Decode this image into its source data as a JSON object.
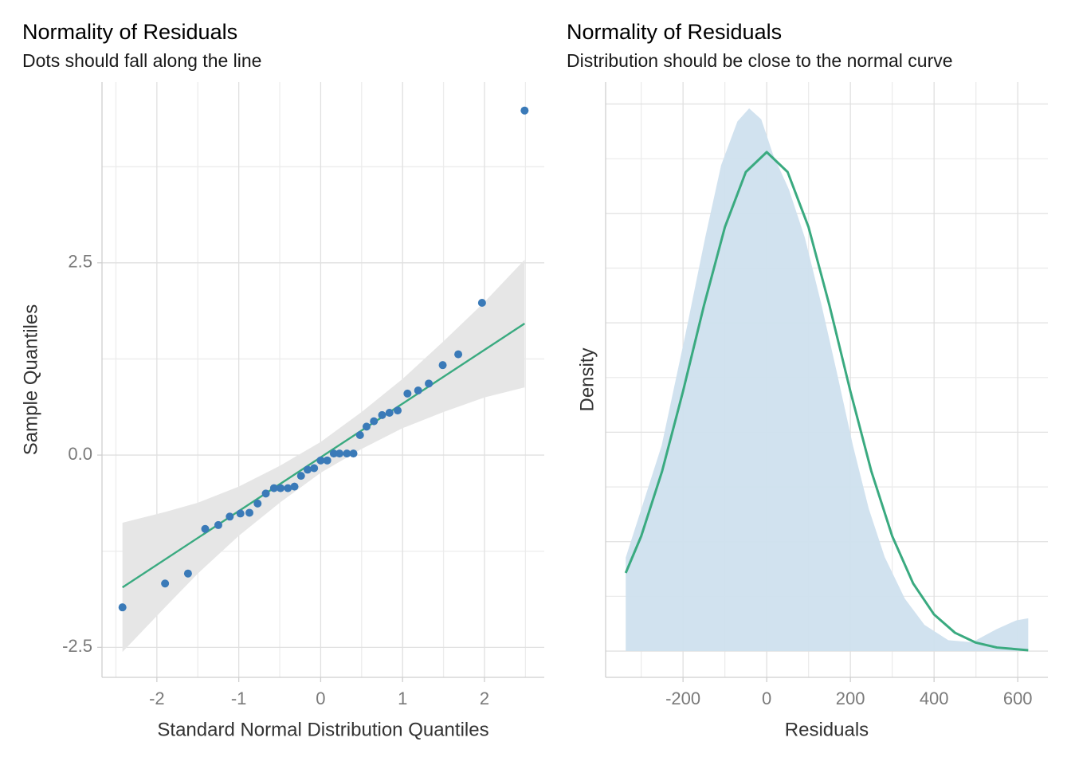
{
  "chart_data": [
    {
      "type": "qq",
      "title": "Normality of Residuals",
      "subtitle": "Dots should fall along the line",
      "x_label": "Standard Normal Distribution Quantiles",
      "y_label": "Sample Quantiles",
      "xlim": [
        -2.67,
        2.73
      ],
      "ylim": [
        -2.89,
        4.85
      ],
      "xticks": [
        -2,
        -1,
        0,
        1,
        2
      ],
      "yticks": [
        -2.5,
        {
          "value": 0,
          "label": "0.0"
        },
        2.5
      ],
      "minor_xticks": [
        -2.5,
        -1.5,
        -0.5,
        0.5,
        1.5,
        2.5
      ],
      "minor_yticks": [
        -1.25,
        1.25,
        3.75
      ],
      "grid": true,
      "band": {
        "color": "#e6e6e6",
        "x": [
          -2.42,
          -1.9,
          -1.5,
          -1,
          -0.5,
          0,
          0.5,
          1,
          1.5,
          2,
          2.49
        ],
        "upper": [
          -0.88,
          -0.74,
          -0.62,
          -0.41,
          -0.14,
          0.17,
          0.56,
          0.99,
          1.48,
          1.99,
          2.54
        ],
        "lower": [
          -2.56,
          -1.98,
          -1.54,
          -1.05,
          -0.62,
          -0.23,
          0.08,
          0.35,
          0.56,
          0.75,
          0.88
        ]
      },
      "reference_line": {
        "color": "#3aaa80",
        "x": [
          -2.42,
          2.49
        ],
        "y": [
          -1.72,
          1.71
        ]
      },
      "points": {
        "color": "#3a7ab8",
        "x": [
          -2.42,
          -1.9,
          -1.62,
          -1.41,
          -1.25,
          -1.11,
          -0.98,
          -0.87,
          -0.77,
          -0.67,
          -0.57,
          -0.49,
          -0.4,
          -0.32,
          -0.24,
          -0.16,
          -0.08,
          0,
          0.08,
          0.16,
          0.23,
          0.32,
          0.4,
          0.48,
          0.56,
          0.65,
          0.75,
          0.84,
          0.94,
          1.06,
          1.19,
          1.32,
          1.49,
          1.68,
          1.97,
          2.49
        ],
        "y": [
          -1.98,
          -1.67,
          -1.54,
          -0.96,
          -0.91,
          -0.8,
          -0.76,
          -0.75,
          -0.63,
          -0.5,
          -0.43,
          -0.43,
          -0.43,
          -0.41,
          -0.27,
          -0.19,
          -0.17,
          -0.07,
          -0.07,
          0.02,
          0.02,
          0.02,
          0.02,
          0.26,
          0.37,
          0.44,
          0.52,
          0.55,
          0.58,
          0.8,
          0.84,
          0.93,
          1.17,
          1.31,
          1.98,
          4.48
        ]
      }
    },
    {
      "type": "density",
      "title": "Normality of Residuals",
      "subtitle": "Distribution should be close to the normal curve",
      "x_label": "Residuals",
      "y_label": "Density",
      "xlim": [
        -385,
        672
      ],
      "ylim": [
        -0.00012,
        0.0026
      ],
      "xticks": [
        -200,
        0,
        200,
        400,
        600
      ],
      "minor_xticks": [
        -300,
        -100,
        100,
        300,
        500
      ],
      "ygrid": [
        0,
        0.0005,
        0.001,
        0.0015,
        0.002,
        0.0025
      ],
      "minor_ygrid": [
        0.00025,
        0.00075,
        0.00125,
        0.00175,
        0.00225
      ],
      "grid": true,
      "density": {
        "color": "#cfe0ee",
        "x": [
          -337,
          -251,
          -194,
          -147,
          -109,
          -70,
          -42,
          -13,
          15,
          53,
          91,
          130,
          168,
          206,
          244,
          282,
          330,
          377,
          434,
          491,
          549,
          596,
          625
        ],
        "y": [
          0.000427,
          0.00094,
          0.00145,
          0.00189,
          0.00222,
          0.00242,
          0.00248,
          0.00243,
          0.00227,
          0.00211,
          0.00189,
          0.00159,
          0.00127,
          0.00094,
          0.00065,
          0.00043,
          0.00024,
          0.00012,
          5e-05,
          4e-05,
          0.0001,
          0.00014,
          0.00015
        ]
      },
      "normal_curve": {
        "color": "#3aaa80",
        "x": [
          -337,
          -300,
          -250,
          -200,
          -150,
          -100,
          -50,
          0,
          50,
          100,
          150,
          200,
          250,
          300,
          350,
          400,
          450,
          500,
          550,
          625
        ],
        "y": [
          0.000357,
          0.000525,
          0.000822,
          0.001187,
          0.001579,
          0.001937,
          0.002189,
          0.00228,
          0.002189,
          0.001937,
          0.001579,
          0.001187,
          0.000822,
          0.000525,
          0.000309,
          0.000167,
          8.37e-05,
          3.85e-05,
          1.63e-05,
          3.9e-06
        ]
      }
    }
  ]
}
